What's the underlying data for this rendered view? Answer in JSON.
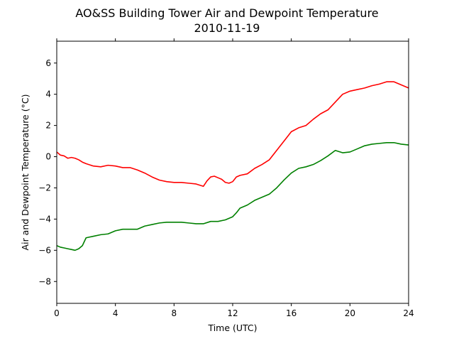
{
  "chart_data": {
    "type": "line",
    "title": "AO&SS Building Tower Air and Dewpoint Temperature",
    "subtitle": "2010-11-19",
    "xlabel": "Time (UTC)",
    "ylabel": "Air and Dewpoint Temperature (°C)",
    "xlim": [
      0,
      24
    ],
    "ylim": [
      -9.4,
      7.4
    ],
    "xticks": [
      0,
      4,
      8,
      12,
      16,
      20,
      24
    ],
    "yticks": [
      -8,
      -6,
      -4,
      -2,
      0,
      2,
      4,
      6
    ],
    "ytick_labels": [
      "−8",
      "−6",
      "−4",
      "−2",
      "0",
      "2",
      "4",
      "6"
    ],
    "grid": false,
    "series": [
      {
        "color": "#ff0000",
        "x": [
          0,
          0.25,
          0.5,
          0.75,
          1,
          1.25,
          1.5,
          1.75,
          2,
          2.5,
          3,
          3.5,
          4,
          4.5,
          5,
          5.5,
          6,
          6.5,
          7,
          7.5,
          8,
          8.5,
          9,
          9.5,
          10,
          10.25,
          10.5,
          10.75,
          11,
          11.25,
          11.5,
          11.75,
          12,
          12.25,
          12.5,
          13,
          13.5,
          14,
          14.5,
          15,
          15.5,
          16,
          16.5,
          17,
          17.5,
          18,
          18.5,
          19,
          19.5,
          20,
          20.5,
          21,
          21.5,
          22,
          22.5,
          23,
          23.5,
          24
        ],
        "values": [
          0.3,
          0.1,
          0.05,
          -0.1,
          -0.05,
          -0.1,
          -0.2,
          -0.35,
          -0.45,
          -0.6,
          -0.65,
          -0.55,
          -0.6,
          -0.7,
          -0.7,
          -0.85,
          -1.05,
          -1.3,
          -1.5,
          -1.6,
          -1.65,
          -1.65,
          -1.7,
          -1.75,
          -1.9,
          -1.55,
          -1.3,
          -1.25,
          -1.35,
          -1.45,
          -1.65,
          -1.7,
          -1.6,
          -1.3,
          -1.2,
          -1.1,
          -0.75,
          -0.5,
          -0.2,
          0.4,
          1.0,
          1.6,
          1.85,
          2.0,
          2.4,
          2.75,
          3.0,
          3.5,
          4.0,
          4.2,
          4.3,
          4.4,
          4.55,
          4.65,
          4.8,
          4.8,
          4.6,
          4.4
        ]
      },
      {
        "color": "#008000",
        "x": [
          0,
          0.25,
          0.5,
          0.75,
          1,
          1.25,
          1.5,
          1.75,
          2,
          2.5,
          3,
          3.5,
          4,
          4.5,
          5,
          5.5,
          6,
          6.5,
          7,
          7.5,
          8,
          8.5,
          9,
          9.5,
          10,
          10.5,
          11,
          11.5,
          12,
          12.25,
          12.5,
          13,
          13.5,
          14,
          14.5,
          15,
          15.5,
          16,
          16.5,
          17,
          17.5,
          18,
          18.5,
          19,
          19.5,
          20,
          20.5,
          21,
          21.5,
          22,
          22.5,
          23,
          23.5,
          24
        ],
        "values": [
          -5.7,
          -5.8,
          -5.85,
          -5.9,
          -5.95,
          -6.0,
          -5.9,
          -5.7,
          -5.2,
          -5.1,
          -5.0,
          -4.95,
          -4.75,
          -4.65,
          -4.65,
          -4.65,
          -4.45,
          -4.35,
          -4.25,
          -4.2,
          -4.2,
          -4.2,
          -4.25,
          -4.3,
          -4.3,
          -4.15,
          -4.15,
          -4.05,
          -3.85,
          -3.6,
          -3.3,
          -3.1,
          -2.8,
          -2.6,
          -2.4,
          -2.0,
          -1.5,
          -1.05,
          -0.75,
          -0.65,
          -0.5,
          -0.25,
          0.05,
          0.4,
          0.25,
          0.3,
          0.5,
          0.7,
          0.8,
          0.85,
          0.9,
          0.9,
          0.8,
          0.75
        ]
      }
    ]
  }
}
